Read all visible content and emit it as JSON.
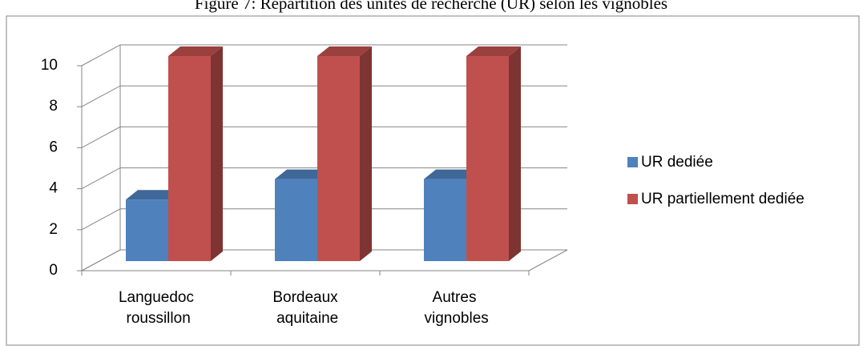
{
  "chart_data": {
    "type": "bar3d",
    "title": "Figure 7: Répartition des unités de recherche (UR) selon les vignobles",
    "categories": [
      "Languedoc roussillon",
      "Bordeaux aquitaine",
      "Autres vignobles"
    ],
    "series": [
      {
        "name": "UR dediée",
        "color": "#4f81bd",
        "values": [
          3,
          4,
          4
        ]
      },
      {
        "name": "UR partiellement dediée",
        "color": "#c0504d",
        "values": [
          10,
          10,
          10
        ]
      }
    ],
    "ylim": [
      0,
      10
    ],
    "yticks": [
      0,
      2,
      4,
      6,
      8,
      10
    ],
    "grid": true,
    "legend": "right"
  }
}
